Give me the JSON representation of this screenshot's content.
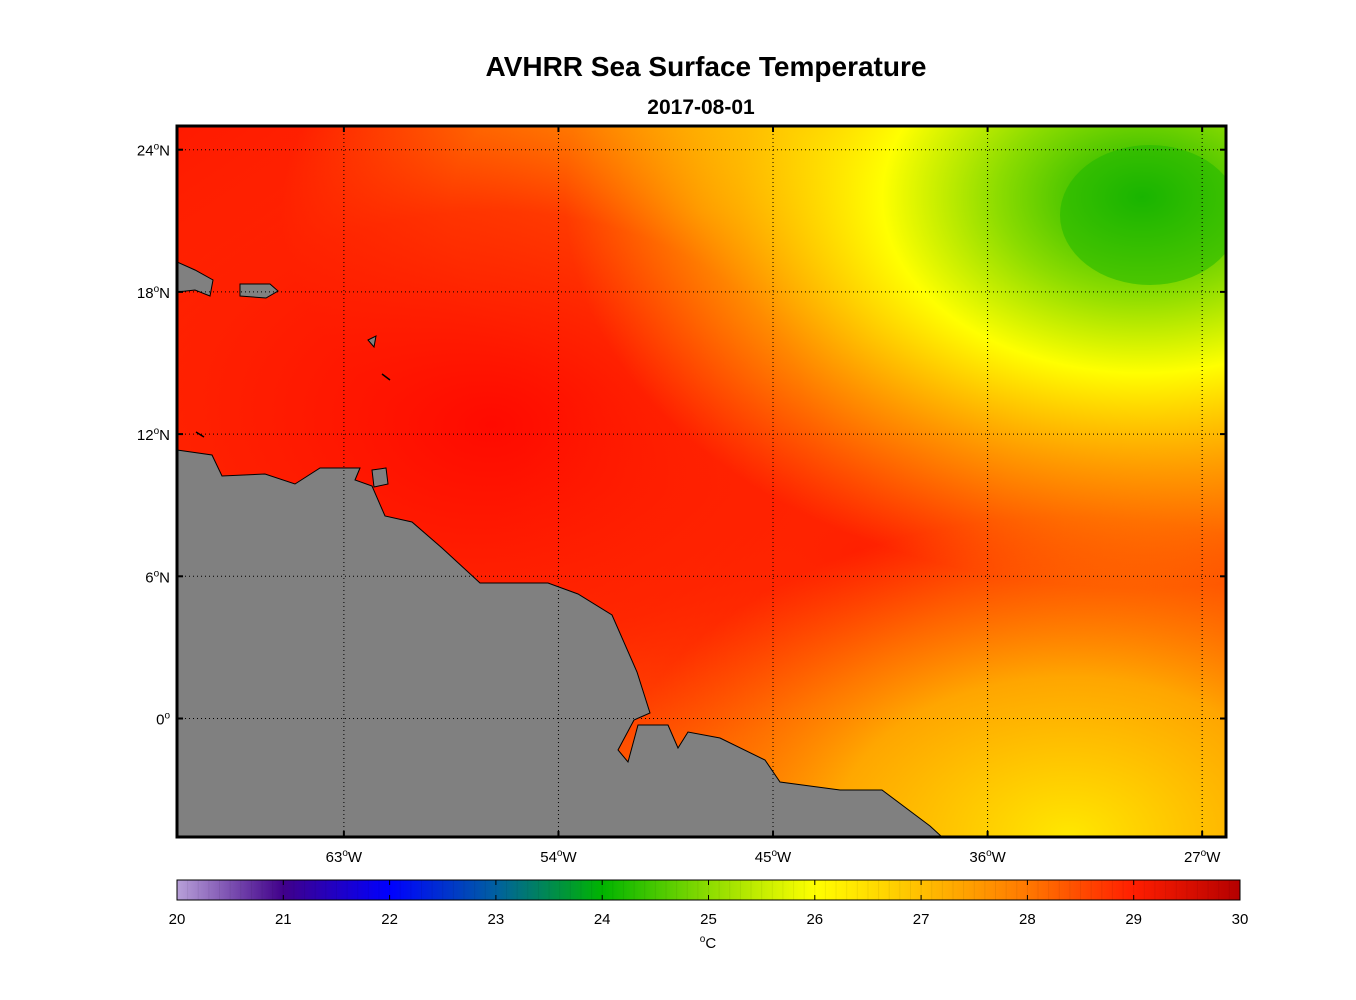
{
  "title": "AVHRR Sea Surface Temperature",
  "subtitle": "2017-08-01",
  "map": {
    "lon_range": [
      -70,
      -26
    ],
    "lat_range": [
      -5,
      25
    ],
    "grid": true,
    "land_color": "#808080",
    "lat_ticks": [
      {
        "value": 24,
        "label": "24",
        "sup": "o",
        "hem": "N"
      },
      {
        "value": 18,
        "label": "18",
        "sup": "o",
        "hem": "N"
      },
      {
        "value": 12,
        "label": "12",
        "sup": "o",
        "hem": "N"
      },
      {
        "value": 6,
        "label": "6",
        "sup": "o",
        "hem": "N"
      },
      {
        "value": 0,
        "label": "0",
        "sup": "o",
        "hem": ""
      }
    ],
    "lon_ticks": [
      {
        "value": -63,
        "label": "63",
        "sup": "o",
        "hem": "W"
      },
      {
        "value": -54,
        "label": "54",
        "sup": "o",
        "hem": "W"
      },
      {
        "value": -45,
        "label": "45",
        "sup": "o",
        "hem": "W"
      },
      {
        "value": -36,
        "label": "36",
        "sup": "o",
        "hem": "W"
      },
      {
        "value": -27,
        "label": "27",
        "sup": "o",
        "hem": "W"
      }
    ]
  },
  "colorbar": {
    "min": 20,
    "max": 30,
    "ticks": [
      "20",
      "21",
      "22",
      "23",
      "24",
      "25",
      "26",
      "27",
      "28",
      "29",
      "30"
    ],
    "unit_sup": "o",
    "unit": "C",
    "stops": [
      {
        "v": 20,
        "c": "#b8a0d8"
      },
      {
        "v": 21,
        "c": "#40008a"
      },
      {
        "v": 22,
        "c": "#0000ff"
      },
      {
        "v": 23,
        "c": "#0060a0"
      },
      {
        "v": 24,
        "c": "#00b400"
      },
      {
        "v": 25,
        "c": "#8cdc00"
      },
      {
        "v": 26,
        "c": "#ffff00"
      },
      {
        "v": 27,
        "c": "#ffbf00"
      },
      {
        "v": 28,
        "c": "#ff7800"
      },
      {
        "v": 29,
        "c": "#ff1e00"
      },
      {
        "v": 30,
        "c": "#b40000"
      }
    ]
  }
}
